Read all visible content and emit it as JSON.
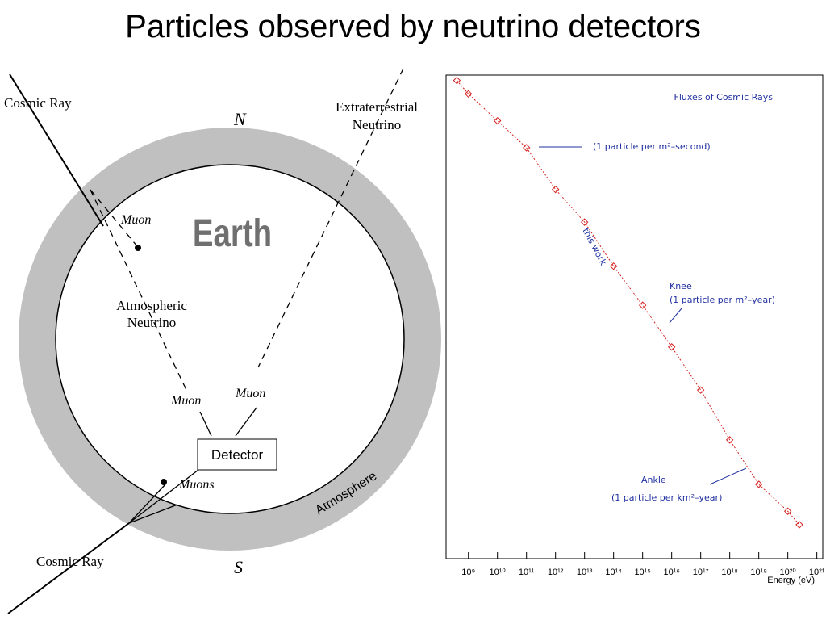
{
  "title": "Particles observed by neutrino detectors",
  "diagram": {
    "cosmic_ray_top": "Cosmic Ray",
    "cosmic_ray_bottom": "Cosmic Ray",
    "north": "N",
    "south": "S",
    "extraterrestrial": [
      "Extraterrestrial",
      "Neutrino"
    ],
    "atmospheric": [
      "Atmospheric",
      "Neutrino"
    ],
    "muon_top": "Muon",
    "muon_left": "Muon",
    "muon_right": "Muon",
    "muons": "Muons",
    "earth": "Earth",
    "detector": "Detector",
    "atmosphere": "Atmosphere"
  },
  "chart_data": {
    "type": "scatter",
    "title": "Fluxes of Cosmic Rays",
    "x_label": "Energy (eV)",
    "log_x": true,
    "log_y": true,
    "annotations": [
      "(1 particle per m²–second)",
      "this work",
      "Knee",
      "(1 particle per m²–year)",
      "Ankle",
      "(1 particle per km²–year)"
    ],
    "x": [
      400000000.0,
      1000000000.0,
      10000000000.0,
      100000000000.0,
      1000000000000.0,
      10000000000000.0,
      100000000000000.0,
      1000000000000000.0,
      1e+16,
      1e+17,
      1e+18,
      1e+19,
      1e+20,
      2.5e+20
    ],
    "series": [
      {
        "color": "#d42020",
        "values": [
          100000.0,
          10000.0,
          100,
          1,
          0.0008,
          3e-06,
          1.6e-09,
          2e-12,
          1.6e-15,
          1e-18,
          2e-22,
          1e-25,
          1e-27,
          1e-28
        ]
      }
    ],
    "xlim": [
      170000000.0,
      1.6e+21
    ],
    "ylim": [
      3e-31,
      250000.0
    ],
    "xticks": [
      {
        "value": 1000000000.0,
        "label": "10⁹"
      },
      {
        "value": 10000000000.0,
        "label": "10¹⁰"
      },
      {
        "value": 100000000000.0,
        "label": "10¹¹"
      },
      {
        "value": 1000000000000.0,
        "label": "10¹²"
      },
      {
        "value": 10000000000000.0,
        "label": "10¹³"
      },
      {
        "value": 100000000000000.0,
        "label": "10¹⁴"
      },
      {
        "value": 1000000000000000.0,
        "label": "10¹⁵"
      },
      {
        "value": 1e+16,
        "label": "10¹⁶"
      },
      {
        "value": 1e+17,
        "label": "10¹⁷"
      },
      {
        "value": 1e+18,
        "label": "10¹⁸"
      },
      {
        "value": 1e+19,
        "label": "10¹⁹"
      },
      {
        "value": 1e+20,
        "label": "10²⁰"
      },
      {
        "value": 1e+21,
        "label": "10²¹"
      }
    ]
  }
}
